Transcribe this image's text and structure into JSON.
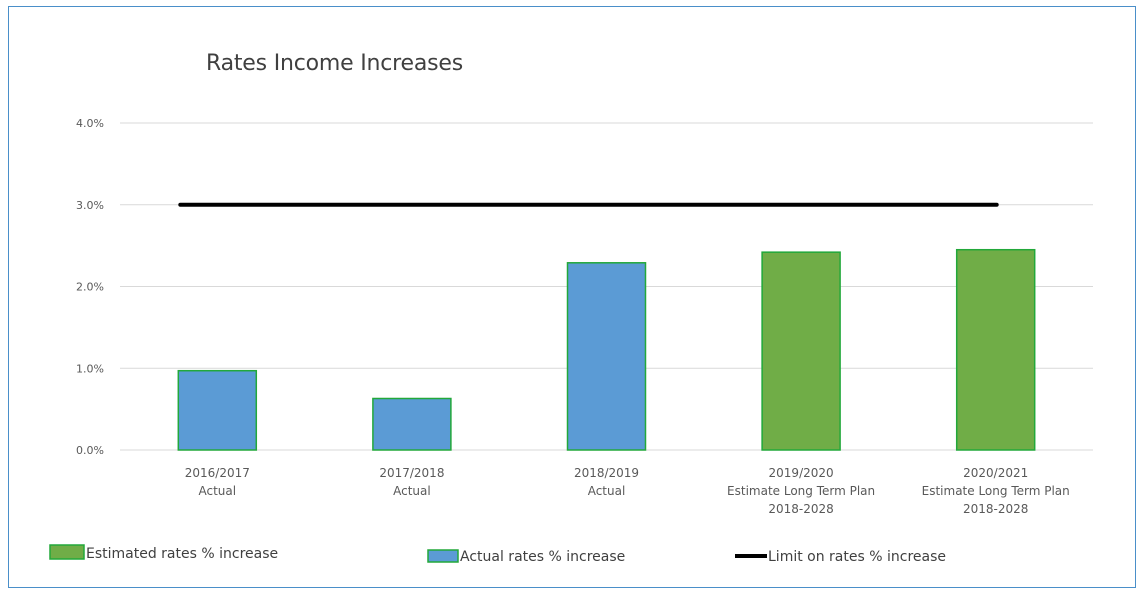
{
  "chart_data": {
    "type": "bar",
    "title": "Rates Income Increases",
    "categories": [
      [
        "2016/2017",
        "Actual"
      ],
      [
        "2017/2018",
        "Actual"
      ],
      [
        "2018/2019",
        "Actual"
      ],
      [
        "2019/2020",
        "Estimate Long Term Plan",
        "2018-2028"
      ],
      [
        "2020/2021",
        "Estimate Long Term Plan",
        "2018-2028"
      ]
    ],
    "series": [
      {
        "name": "Actual rates % increase",
        "type": "bar",
        "color": "#5b9bd5",
        "values": [
          0.97,
          0.63,
          2.29,
          null,
          null
        ]
      },
      {
        "name": "Estimated rates % increase",
        "type": "bar",
        "color": "#70ad47",
        "values": [
          null,
          null,
          null,
          2.42,
          2.45
        ]
      },
      {
        "name": "Limit on rates % increase",
        "type": "line",
        "color": "#000000",
        "values": [
          3.0,
          3.0,
          3.0,
          3.0,
          3.0
        ]
      }
    ],
    "y_ticks": [
      "0.0%",
      "1.0%",
      "2.0%",
      "3.0%",
      "4.0%"
    ],
    "ylim": [
      0,
      4
    ],
    "bar_border_color": "#22a83a",
    "legend": {
      "placement": "bottom",
      "order": [
        "Estimated rates % increase",
        "Actual rates % increase",
        "Limit on rates % increase"
      ]
    },
    "grid": true
  }
}
